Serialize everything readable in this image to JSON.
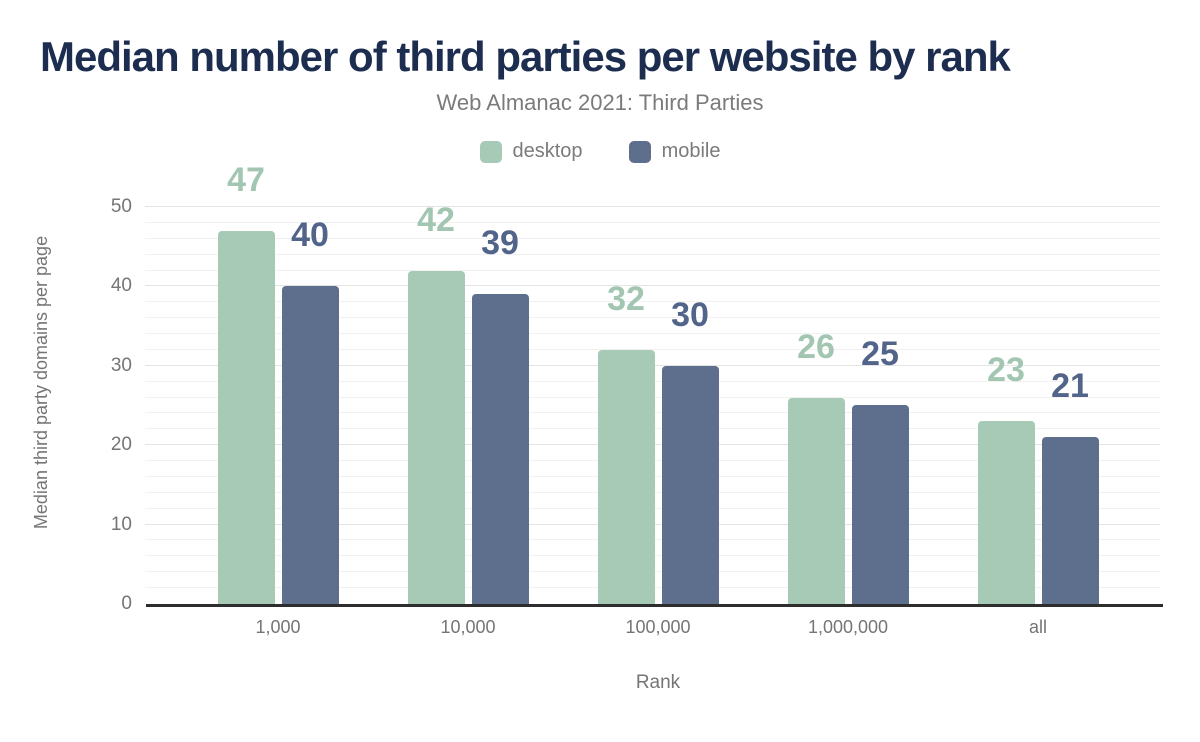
{
  "chart_data": {
    "type": "bar",
    "title": "Median number of third parties per website by rank",
    "subtitle": "Web Almanac 2021: Third Parties",
    "xlabel": "Rank",
    "ylabel": "Median third party domains per page",
    "categories": [
      "1,000",
      "10,000",
      "100,000",
      "1,000,000",
      "all"
    ],
    "series": [
      {
        "name": "desktop",
        "values": [
          47,
          42,
          32,
          26,
          23
        ],
        "color": "#a7cab7",
        "label_color": "#a2c6b1"
      },
      {
        "name": "mobile",
        "values": [
          40,
          39,
          30,
          25,
          21
        ],
        "color": "#5e6f8e",
        "label_color": "#52648a"
      }
    ],
    "ylim": [
      0,
      50
    ],
    "yticks": [
      0,
      10,
      20,
      30,
      40,
      50
    ],
    "minor_grid_step": 2,
    "grid": "on",
    "legend_position": "top",
    "data_labels": "above bars"
  },
  "colors": {
    "title": "#1c2d4f",
    "subtitle": "#7b7b7b",
    "axis_text": "#757575",
    "axis_line": "#2d2d2d",
    "major_grid": "#e4e4e4",
    "minor_grid": "#f1f1f1",
    "background": "#ffffff"
  }
}
